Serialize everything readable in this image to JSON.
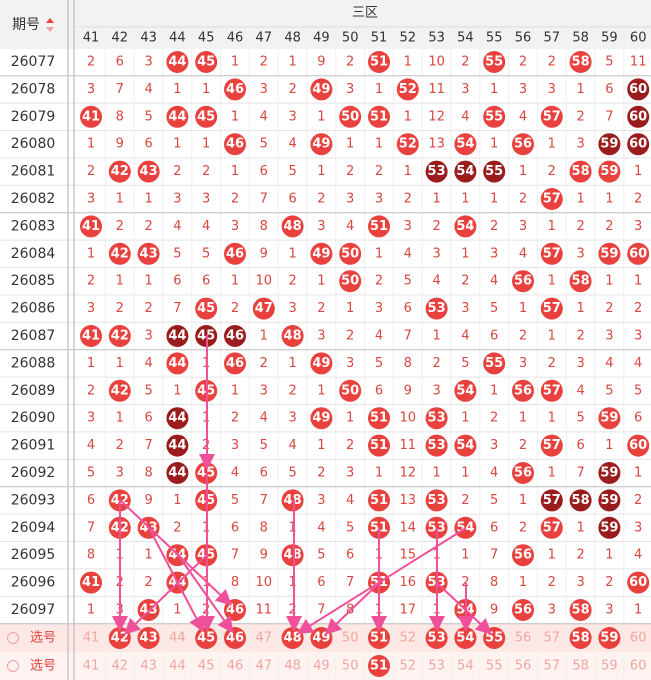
{
  "header": {
    "period_label": "期号",
    "zone": "三区"
  },
  "columns": [
    "41",
    "42",
    "43",
    "44",
    "45",
    "46",
    "47",
    "48",
    "49",
    "50",
    "51",
    "52",
    "53",
    "54",
    "55",
    "56",
    "57",
    "58",
    "59",
    "60"
  ],
  "rows": [
    {
      "period": "26077",
      "cells": [
        2,
        6,
        3,
        "44",
        "45",
        1,
        2,
        1,
        9,
        2,
        "51",
        1,
        10,
        2,
        "55",
        2,
        2,
        "58",
        5,
        11
      ]
    },
    {
      "period": "26078",
      "cells": [
        3,
        7,
        4,
        1,
        1,
        "46",
        3,
        2,
        "49",
        3,
        1,
        "52",
        11,
        3,
        1,
        3,
        3,
        1,
        6,
        "60"
      ],
      "dark": [
        19
      ]
    },
    {
      "period": "26079",
      "cells": [
        "41",
        8,
        5,
        "44",
        "45",
        1,
        4,
        3,
        1,
        "50",
        "51",
        1,
        12,
        4,
        "55",
        4,
        "57",
        2,
        7,
        "60"
      ],
      "dark": [
        19
      ]
    },
    {
      "period": "26080",
      "cells": [
        1,
        9,
        6,
        1,
        1,
        "46",
        5,
        4,
        "49",
        1,
        1,
        "52",
        13,
        "54",
        1,
        "56",
        1,
        3,
        "59",
        "60"
      ],
      "dark": [
        18,
        19
      ]
    },
    {
      "period": "26081",
      "cells": [
        2,
        "42",
        "43",
        2,
        2,
        1,
        6,
        5,
        1,
        2,
        2,
        1,
        "53",
        "54",
        "55",
        1,
        2,
        "58",
        "59",
        1
      ],
      "dark": [
        12,
        13,
        14
      ]
    },
    {
      "period": "26082",
      "cells": [
        3,
        1,
        1,
        3,
        3,
        2,
        7,
        6,
        2,
        3,
        3,
        2,
        1,
        1,
        1,
        2,
        "57",
        1,
        1,
        2
      ]
    },
    {
      "period": "26083",
      "cells": [
        "41",
        2,
        2,
        4,
        4,
        3,
        8,
        "48",
        3,
        4,
        "51",
        3,
        2,
        "54",
        2,
        3,
        1,
        2,
        2,
        3
      ]
    },
    {
      "period": "26084",
      "cells": [
        1,
        "42",
        "43",
        5,
        5,
        "46",
        9,
        1,
        "49",
        "50",
        1,
        4,
        3,
        1,
        3,
        4,
        "57",
        3,
        "59",
        "60"
      ]
    },
    {
      "period": "26085",
      "cells": [
        2,
        1,
        1,
        6,
        6,
        1,
        10,
        2,
        1,
        "50",
        2,
        5,
        4,
        2,
        4,
        "56",
        1,
        "58",
        1,
        1
      ]
    },
    {
      "period": "26086",
      "cells": [
        3,
        2,
        2,
        7,
        "45",
        2,
        "47",
        3,
        2,
        1,
        3,
        6,
        "53",
        3,
        5,
        1,
        "57",
        1,
        2,
        2
      ]
    },
    {
      "period": "26087",
      "cells": [
        "41",
        "42",
        3,
        "44",
        "45",
        "46",
        1,
        "48",
        3,
        2,
        4,
        7,
        1,
        4,
        6,
        2,
        1,
        2,
        3,
        3
      ],
      "dark": [
        3,
        4,
        5
      ]
    },
    {
      "period": "26088",
      "cells": [
        1,
        1,
        4,
        "44",
        1,
        "46",
        2,
        1,
        "49",
        3,
        5,
        8,
        2,
        5,
        "55",
        3,
        2,
        3,
        4,
        4
      ]
    },
    {
      "period": "26089",
      "cells": [
        2,
        "42",
        5,
        1,
        "45",
        1,
        3,
        2,
        1,
        "50",
        6,
        9,
        3,
        "54",
        1,
        "56",
        "57",
        4,
        5,
        5
      ]
    },
    {
      "period": "26090",
      "cells": [
        3,
        1,
        6,
        "44",
        1,
        2,
        4,
        3,
        "49",
        1,
        "51",
        10,
        "53",
        1,
        2,
        1,
        1,
        5,
        "59",
        6
      ],
      "dark": [
        3
      ]
    },
    {
      "period": "26091",
      "cells": [
        4,
        2,
        7,
        "44",
        2,
        3,
        5,
        4,
        1,
        2,
        "51",
        11,
        "53",
        "54",
        3,
        2,
        "57",
        6,
        1,
        "60"
      ],
      "dark": [
        3
      ]
    },
    {
      "period": "26092",
      "cells": [
        5,
        3,
        8,
        "44",
        "45",
        4,
        6,
        5,
        2,
        3,
        1,
        12,
        1,
        1,
        4,
        "56",
        1,
        7,
        "59",
        1
      ],
      "dark": [
        3,
        18
      ]
    },
    {
      "period": "26093",
      "cells": [
        6,
        "42",
        9,
        1,
        "45",
        5,
        7,
        "48",
        3,
        4,
        "51",
        13,
        "53",
        2,
        5,
        1,
        "57",
        "58",
        "59",
        2
      ],
      "dark": [
        16,
        17,
        18
      ]
    },
    {
      "period": "26094",
      "cells": [
        7,
        "42",
        "43",
        2,
        1,
        6,
        8,
        1,
        4,
        5,
        "51",
        14,
        "53",
        "54",
        6,
        2,
        "57",
        1,
        "59",
        3
      ],
      "dark": [
        18
      ]
    },
    {
      "period": "26095",
      "cells": [
        8,
        1,
        1,
        "44",
        "45",
        7,
        9,
        "48",
        5,
        6,
        1,
        15,
        1,
        1,
        7,
        "56",
        1,
        2,
        1,
        4
      ]
    },
    {
      "period": "26096",
      "cells": [
        "41",
        2,
        2,
        "44",
        1,
        8,
        10,
        1,
        6,
        7,
        "51",
        16,
        "53",
        2,
        8,
        1,
        2,
        3,
        2,
        "60"
      ]
    },
    {
      "period": "26097",
      "cells": [
        1,
        3,
        "43",
        1,
        2,
        "46",
        11,
        2,
        7,
        8,
        1,
        17,
        1,
        "54",
        9,
        "56",
        3,
        "58",
        3,
        1
      ]
    }
  ],
  "select_rows": [
    {
      "label": "选号",
      "numbers": [
        "41",
        "42",
        "43",
        "44",
        "45",
        "46",
        "47",
        "48",
        "49",
        "50",
        "51",
        "52",
        "53",
        "54",
        "55",
        "56",
        "57",
        "58",
        "59",
        "60"
      ],
      "selected": [
        1,
        2,
        4,
        5,
        7,
        8,
        10,
        12,
        13,
        14,
        17,
        18
      ]
    },
    {
      "label": "选号",
      "numbers": [
        "41",
        "42",
        "43",
        "44",
        "45",
        "46",
        "47",
        "48",
        "49",
        "50",
        "51",
        "52",
        "53",
        "54",
        "55",
        "56",
        "57",
        "58",
        "59",
        "60"
      ],
      "selected": [
        10
      ]
    }
  ]
}
